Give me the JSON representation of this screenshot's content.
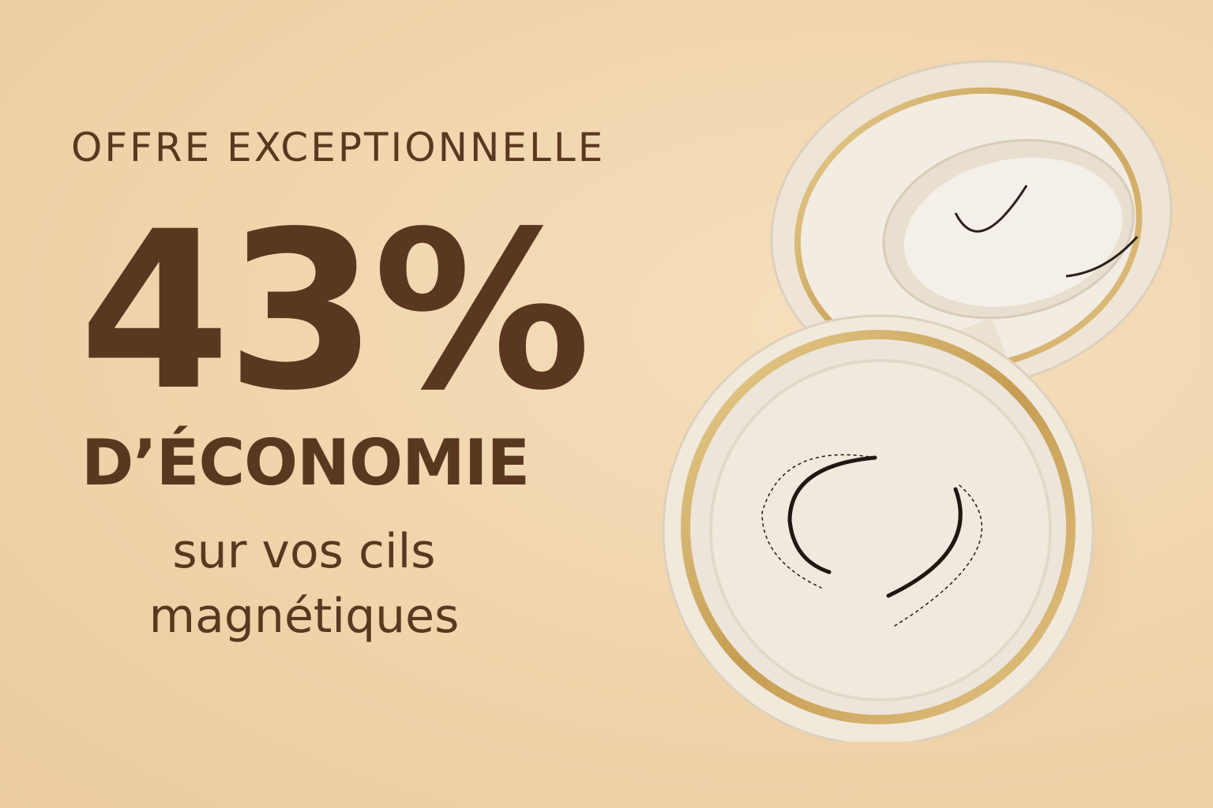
{
  "headline": {
    "kicker": "OFFRE EXCEPTIONNELLE",
    "discount": "43%",
    "saving": "D’ÉCONOMIE",
    "subtitle_line1": "sur vos cils",
    "subtitle_line2": "magnétiques"
  },
  "colors": {
    "background": "#f0d4ab",
    "text": "#5a3820",
    "compact_body": "#efe6d8",
    "gold_trim": "#c9a25a"
  },
  "product_image": {
    "subject": "magnetic-eyelash-compact-case"
  }
}
